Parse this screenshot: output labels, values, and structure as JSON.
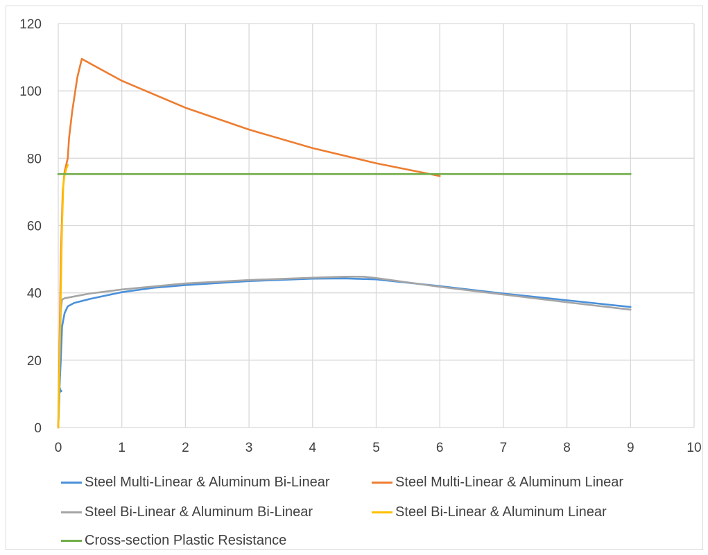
{
  "chart_data": {
    "type": "line",
    "title": "",
    "xlabel": "",
    "ylabel": "",
    "xlim": [
      0,
      10
    ],
    "ylim": [
      0,
      120
    ],
    "x_ticks": [
      "0",
      "1",
      "2",
      "3",
      "4",
      "5",
      "6",
      "7",
      "8",
      "9",
      "10"
    ],
    "y_ticks": [
      "0",
      "20",
      "40",
      "60",
      "80",
      "100",
      "120"
    ],
    "grid": true,
    "legend_position": "bottom",
    "series": [
      {
        "name": "Steel Multi-Linear & Aluminum Bi-Linear",
        "color": "#4a90d9",
        "points": [
          [
            0,
            0
          ],
          [
            0.02,
            10.5
          ],
          [
            0.05,
            10.8
          ],
          [
            0.03,
            11.2
          ],
          [
            0.02,
            12
          ],
          [
            0.04,
            20
          ],
          [
            0.06,
            30
          ],
          [
            0.1,
            34
          ],
          [
            0.15,
            36
          ],
          [
            0.25,
            37
          ],
          [
            0.5,
            38.2
          ],
          [
            1,
            40.2
          ],
          [
            1.5,
            41.5
          ],
          [
            2,
            42.3
          ],
          [
            3,
            43.5
          ],
          [
            4,
            44.2
          ],
          [
            4.5,
            44.3
          ],
          [
            5,
            44
          ],
          [
            6,
            42
          ],
          [
            7,
            39.8
          ],
          [
            8,
            37.8
          ],
          [
            9,
            35.8
          ]
        ]
      },
      {
        "name": "Steel Multi-Linear & Aluminum Linear",
        "color": "#ed7d31",
        "points": [
          [
            0,
            0
          ],
          [
            0.04,
            50
          ],
          [
            0.07,
            70
          ],
          [
            0.1,
            76
          ],
          [
            0.15,
            80
          ],
          [
            0.17,
            86
          ],
          [
            0.22,
            94
          ],
          [
            0.3,
            104
          ],
          [
            0.37,
            109.5
          ],
          [
            1,
            103
          ],
          [
            2,
            95
          ],
          [
            3,
            88.5
          ],
          [
            4,
            83
          ],
          [
            5,
            78.5
          ],
          [
            6,
            74.7
          ]
        ]
      },
      {
        "name": "Steel Bi-Linear & Aluminum Bi-Linear",
        "color": "#a5a5a5",
        "points": [
          [
            0,
            0
          ],
          [
            0.02,
            20
          ],
          [
            0.04,
            35
          ],
          [
            0.06,
            38
          ],
          [
            0.1,
            38.4
          ],
          [
            0.5,
            39.8
          ],
          [
            1,
            41
          ],
          [
            2,
            42.8
          ],
          [
            3,
            43.8
          ],
          [
            4,
            44.5
          ],
          [
            4.5,
            44.8
          ],
          [
            4.8,
            44.8
          ],
          [
            5,
            44.4
          ],
          [
            6,
            41.8
          ],
          [
            7,
            39.5
          ],
          [
            8,
            37.2
          ],
          [
            9,
            35
          ]
        ]
      },
      {
        "name": "Steel Bi-Linear & Aluminum Linear",
        "color": "#ffc000",
        "points": [
          [
            0,
            0
          ],
          [
            0.03,
            30
          ],
          [
            0.06,
            60
          ],
          [
            0.08,
            72
          ],
          [
            0.1,
            75
          ],
          [
            0.13,
            77
          ],
          [
            0.15,
            78
          ]
        ]
      },
      {
        "name": "Cross-section Plastic Resistance",
        "color": "#70ad47",
        "points": [
          [
            0,
            75.3
          ],
          [
            9,
            75.3
          ]
        ]
      }
    ]
  }
}
